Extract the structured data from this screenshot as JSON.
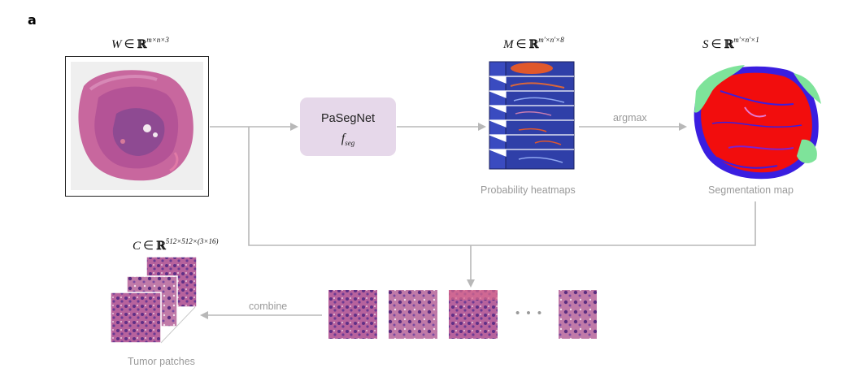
{
  "panel_label": "a",
  "wsi": {
    "symbol": "W",
    "space": "R",
    "superscript": "m×n×3"
  },
  "network": {
    "name": "PaSegNet",
    "symbol": "f",
    "subscript": "seg"
  },
  "heatmaps": {
    "symbol": "M",
    "space": "R",
    "superscript": "m'×n'×8",
    "caption": "Probability  heatmaps"
  },
  "segmentation": {
    "symbol": "S",
    "space": "R",
    "superscript": "m'×n'×1",
    "caption": "Segmentation map"
  },
  "arrow_argmax": "argmax",
  "arrow_combine": "combine",
  "patches": {
    "symbol": "C",
    "space": "R",
    "superscript": "512×512×(3×16)",
    "caption": "Tumor patches",
    "ellipsis": "• • •"
  },
  "colors": {
    "arrow": "#b8b8b8",
    "net_box": "#e6d8ea",
    "heatmap_blue": "#2f3fa8",
    "heatmap_hot": "#e0582c",
    "seg_red": "#f20d0d",
    "seg_blue": "#3a1ee0",
    "seg_green": "#7ee39a",
    "tissue_pink": "#c45f9a",
    "tissue_purple": "#6a3d93"
  }
}
